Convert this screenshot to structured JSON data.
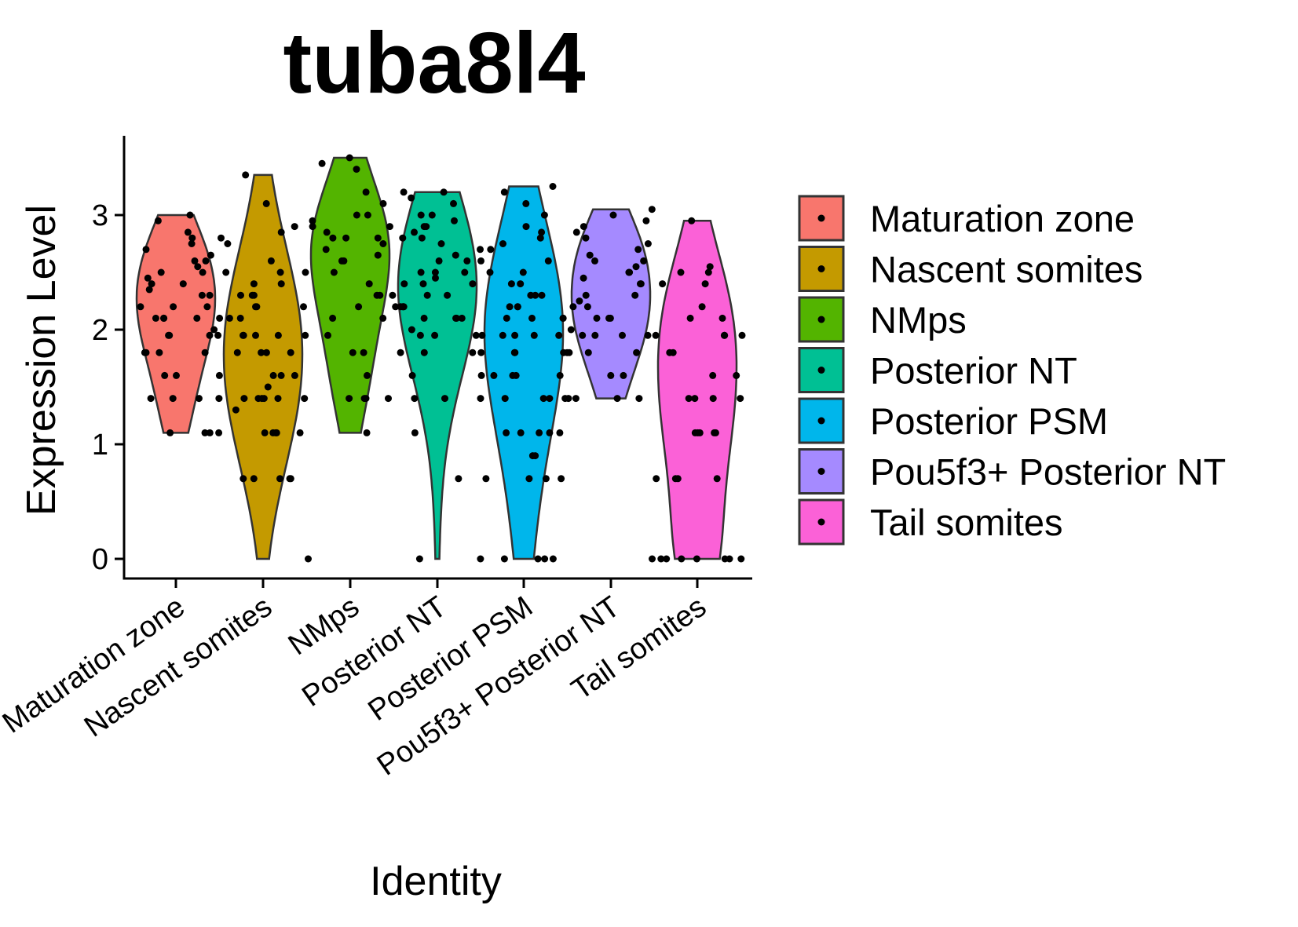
{
  "chart_data": {
    "type": "violin",
    "title": "tuba8l4",
    "xlabel": "Identity",
    "ylabel": "Expression Level",
    "ylim": [
      0,
      3.6
    ],
    "yticks": [
      0,
      1,
      2,
      3
    ],
    "categories": [
      "Maturation zone",
      "Nascent somites",
      "NMps",
      "Posterior NT",
      "Posterior PSM",
      "Pou5f3+ Posterior NT",
      "Tail somites"
    ],
    "colors": [
      "#F8766D",
      "#C49A00",
      "#53B400",
      "#00C094",
      "#00B6EB",
      "#A58AFF",
      "#FB61D7"
    ],
    "legend": {
      "position": "right",
      "entries": [
        "Maturation zone",
        "Nascent somites",
        "NMps",
        "Posterior NT",
        "Posterior PSM",
        "Pou5f3+ Posterior NT",
        "Tail somites"
      ]
    },
    "series": [
      {
        "name": "Maturation zone",
        "min": 1.1,
        "max": 3.0,
        "values": [
          3.0,
          2.95,
          2.85,
          2.8,
          2.8,
          2.75,
          2.7,
          2.65,
          2.6,
          2.6,
          2.55,
          2.5,
          2.5,
          2.45,
          2.4,
          2.4,
          2.35,
          2.3,
          2.3,
          2.2,
          2.2,
          2.2,
          2.1,
          2.1,
          2.1,
          2.1,
          2.0,
          1.95,
          1.95,
          1.95,
          1.8,
          1.8,
          1.8,
          1.8,
          1.6,
          1.6,
          1.4,
          1.4,
          1.4,
          1.4,
          1.1,
          1.1,
          1.1
        ]
      },
      {
        "name": "Nascent somites",
        "min": 0.0,
        "max": 3.35,
        "values": [
          3.35,
          3.1,
          2.9,
          2.85,
          2.75,
          2.6,
          2.5,
          2.5,
          2.4,
          2.4,
          2.3,
          2.3,
          2.3,
          2.2,
          2.2,
          2.2,
          2.1,
          2.1,
          2.1,
          1.95,
          1.95,
          1.95,
          1.95,
          1.95,
          1.8,
          1.8,
          1.8,
          1.8,
          1.6,
          1.6,
          1.6,
          1.6,
          1.5,
          1.4,
          1.4,
          1.4,
          1.4,
          1.4,
          1.4,
          1.3,
          1.1,
          1.1,
          1.1,
          1.1,
          1.1,
          1.1,
          0.7,
          0.7,
          0.7,
          0.7,
          0.7,
          0.0
        ]
      },
      {
        "name": "NMps",
        "min": 1.1,
        "max": 3.5,
        "values": [
          3.5,
          3.45,
          3.4,
          3.2,
          3.1,
          3.0,
          3.0,
          2.95,
          2.9,
          2.9,
          2.85,
          2.8,
          2.8,
          2.8,
          2.75,
          2.7,
          2.65,
          2.6,
          2.6,
          2.5,
          2.5,
          2.4,
          2.3,
          2.3,
          2.2,
          2.2,
          2.1,
          2.1,
          1.95,
          1.95,
          1.8,
          1.8,
          1.6,
          1.4,
          1.4,
          1.4,
          1.4,
          1.1
        ]
      },
      {
        "name": "Posterior NT",
        "min": 0.0,
        "max": 3.2,
        "values": [
          3.2,
          3.2,
          3.15,
          3.1,
          3.0,
          3.0,
          2.95,
          2.9,
          2.9,
          2.85,
          2.8,
          2.8,
          2.75,
          2.7,
          2.65,
          2.6,
          2.6,
          2.5,
          2.5,
          2.5,
          2.45,
          2.4,
          2.4,
          2.4,
          2.3,
          2.3,
          2.3,
          2.2,
          2.2,
          2.2,
          2.2,
          2.1,
          2.1,
          2.1,
          2.1,
          2.0,
          1.95,
          1.95,
          1.95,
          1.8,
          1.8,
          1.8,
          1.6,
          1.6,
          1.4,
          1.4,
          1.4,
          1.1,
          0.7,
          0.0
        ]
      },
      {
        "name": "Posterior PSM",
        "min": 0.0,
        "max": 3.25,
        "values": [
          3.25,
          3.2,
          3.1,
          3.0,
          2.9,
          2.85,
          2.8,
          2.75,
          2.7,
          2.6,
          2.6,
          2.5,
          2.5,
          2.4,
          2.4,
          2.3,
          2.3,
          2.3,
          2.2,
          2.2,
          2.2,
          2.1,
          2.1,
          2.1,
          2.1,
          1.95,
          1.95,
          1.95,
          1.95,
          1.95,
          1.8,
          1.8,
          1.8,
          1.8,
          1.8,
          1.6,
          1.6,
          1.6,
          1.6,
          1.4,
          1.4,
          1.4,
          1.4,
          1.4,
          1.1,
          1.1,
          1.1,
          1.1,
          1.1,
          0.9,
          0.9,
          0.7,
          0.7,
          0.7,
          0.7,
          0.0,
          0.0,
          0.0,
          0.0,
          0.0
        ]
      },
      {
        "name": "Pou5f3+ Posterior NT",
        "min": 1.4,
        "max": 3.05,
        "values": [
          3.05,
          3.0,
          2.95,
          2.9,
          2.85,
          2.8,
          2.75,
          2.7,
          2.65,
          2.6,
          2.6,
          2.55,
          2.5,
          2.5,
          2.45,
          2.4,
          2.4,
          2.3,
          2.3,
          2.25,
          2.2,
          2.2,
          2.1,
          2.1,
          2.1,
          2.0,
          1.95,
          1.95,
          1.95,
          1.95,
          1.8,
          1.8,
          1.8,
          1.6,
          1.6,
          1.4,
          1.4,
          1.4
        ]
      },
      {
        "name": "Tail somites",
        "min": 0.0,
        "max": 2.95,
        "values": [
          2.95,
          2.55,
          2.5,
          2.5,
          2.4,
          2.4,
          2.2,
          2.1,
          2.1,
          1.95,
          1.95,
          1.95,
          1.95,
          1.8,
          1.8,
          1.6,
          1.6,
          1.4,
          1.4,
          1.4,
          1.4,
          1.1,
          1.1,
          1.1,
          1.1,
          1.1,
          0.7,
          0.7,
          0.7,
          0.7,
          0.0,
          0.0,
          0.0,
          0.0,
          0.0,
          0.0,
          0.0,
          0.0
        ]
      }
    ]
  }
}
